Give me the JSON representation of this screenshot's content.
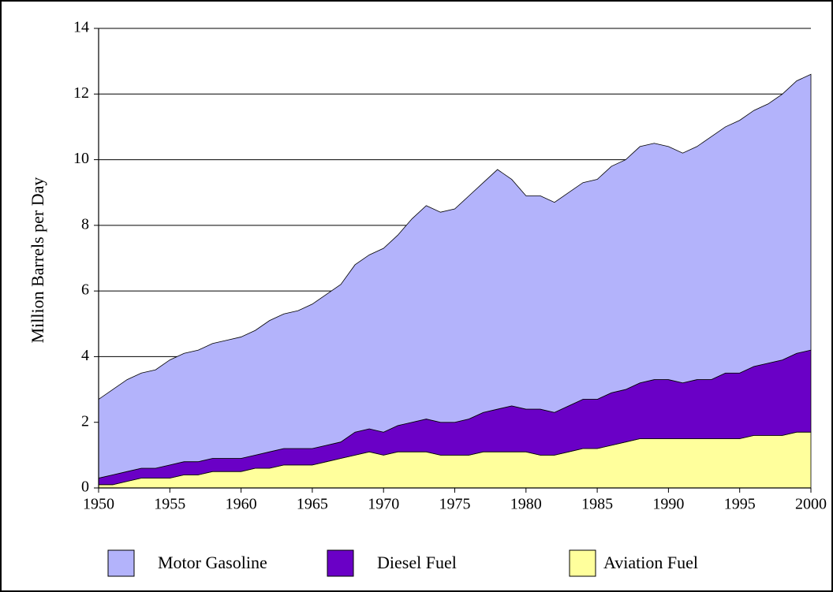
{
  "chart_data": {
    "type": "stacked-area",
    "y_label": "Million Barrels per Day",
    "x": [
      1950,
      1951,
      1952,
      1953,
      1954,
      1955,
      1956,
      1957,
      1958,
      1959,
      1960,
      1961,
      1962,
      1963,
      1964,
      1965,
      1966,
      1967,
      1968,
      1969,
      1970,
      1971,
      1972,
      1973,
      1974,
      1975,
      1976,
      1977,
      1978,
      1979,
      1980,
      1981,
      1982,
      1983,
      1984,
      1985,
      1986,
      1987,
      1988,
      1989,
      1990,
      1991,
      1992,
      1993,
      1994,
      1995,
      1996,
      1997,
      1998,
      1999,
      2000
    ],
    "series": [
      {
        "name": "Motor Gasoline",
        "color": "#b3b3fb",
        "values": [
          2.4,
          2.6,
          2.8,
          2.9,
          3.0,
          3.2,
          3.3,
          3.4,
          3.5,
          3.6,
          3.7,
          3.8,
          4.0,
          4.1,
          4.2,
          4.4,
          4.6,
          4.8,
          5.1,
          5.3,
          5.6,
          5.8,
          6.2,
          6.5,
          6.4,
          6.5,
          6.8,
          7.0,
          7.3,
          6.9,
          6.5,
          6.5,
          6.4,
          6.5,
          6.6,
          6.7,
          6.9,
          7.0,
          7.2,
          7.2,
          7.1,
          7.0,
          7.1,
          7.4,
          7.5,
          7.7,
          7.8,
          7.9,
          8.1,
          8.3,
          8.4
        ]
      },
      {
        "name": "Diesel Fuel",
        "color": "#6a00c6",
        "values": [
          0.2,
          0.3,
          0.3,
          0.3,
          0.3,
          0.4,
          0.4,
          0.4,
          0.4,
          0.4,
          0.4,
          0.4,
          0.5,
          0.5,
          0.5,
          0.5,
          0.5,
          0.5,
          0.7,
          0.7,
          0.7,
          0.8,
          0.9,
          1.0,
          1.0,
          1.0,
          1.1,
          1.2,
          1.3,
          1.4,
          1.3,
          1.4,
          1.3,
          1.4,
          1.5,
          1.5,
          1.6,
          1.6,
          1.7,
          1.8,
          1.8,
          1.7,
          1.8,
          1.8,
          2.0,
          2.0,
          2.1,
          2.2,
          2.3,
          2.4,
          2.5
        ]
      },
      {
        "name": "Aviation Fuel",
        "color": "#ffff9c",
        "values": [
          0.1,
          0.1,
          0.2,
          0.3,
          0.3,
          0.3,
          0.4,
          0.4,
          0.5,
          0.5,
          0.5,
          0.6,
          0.6,
          0.7,
          0.7,
          0.7,
          0.8,
          0.9,
          1.0,
          1.1,
          1.0,
          1.1,
          1.1,
          1.1,
          1.0,
          1.0,
          1.0,
          1.1,
          1.1,
          1.1,
          1.1,
          1.0,
          1.0,
          1.1,
          1.2,
          1.2,
          1.3,
          1.4,
          1.5,
          1.5,
          1.5,
          1.5,
          1.5,
          1.5,
          1.5,
          1.5,
          1.6,
          1.6,
          1.6,
          1.7,
          1.7
        ]
      }
    ],
    "xlim": [
      1950,
      2000
    ],
    "xticks": [
      1950,
      1955,
      1960,
      1965,
      1970,
      1975,
      1980,
      1985,
      1990,
      1995,
      2000
    ],
    "ylim": [
      0,
      14
    ],
    "yticks": [
      0,
      2,
      4,
      6,
      8,
      10,
      12,
      14
    ],
    "grid": true
  }
}
